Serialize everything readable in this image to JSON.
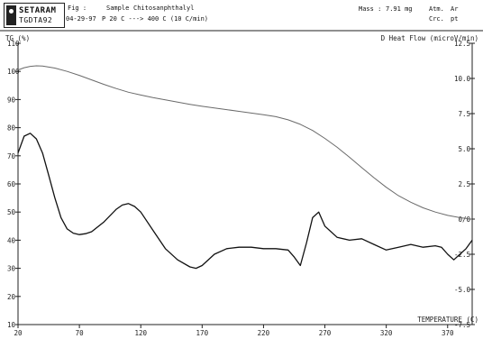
{
  "header": {
    "brand": "SETARAM",
    "model": "TGDTA92",
    "fig_label": "Fig :",
    "sample_label": "Sample",
    "sample_name": "Chitosanphthalyl",
    "date": "04-29-97",
    "program": "P 20 C ---> 400 C (10 C/min)",
    "mass_label": "Mass :",
    "mass_value": "7.91 mg",
    "atm_label": "Atm.",
    "atm_value": "Ar",
    "crucible_label": "Crc.",
    "crucible_value": "pt"
  },
  "chart_data": {
    "type": "line",
    "xlabel": "TEMPERATURE (C)",
    "ylabel_left": "TG (%)",
    "ylabel_right": "D Heat Flow (microV/min)",
    "xlim": [
      20,
      390
    ],
    "ylim_left": [
      10,
      110
    ],
    "ylim_right": [
      -7.5,
      12.5
    ],
    "x_ticks": [
      20,
      70,
      120,
      170,
      220,
      270,
      320,
      370
    ],
    "y_left_ticks": [
      10,
      20,
      30,
      40,
      50,
      60,
      70,
      80,
      90,
      100,
      110
    ],
    "y_right_ticks": [
      {
        "value": 12.5,
        "label": "12.5"
      },
      {
        "value": 10.0,
        "label": "10.0"
      },
      {
        "value": 7.5,
        "label": "7.5"
      },
      {
        "value": 5.0,
        "label": "5.0"
      },
      {
        "value": 2.5,
        "label": "2.5"
      },
      {
        "value": 0.0,
        "label": "0/0"
      },
      {
        "value": -2.5,
        "label": "-2.5"
      },
      {
        "value": -5.0,
        "label": "-5.0"
      },
      {
        "value": -7.5,
        "label": "-7.5"
      }
    ],
    "grid": false,
    "series": [
      {
        "axis": "left",
        "color": "#6a6a6a",
        "x": [
          20,
          25,
          30,
          35,
          40,
          50,
          60,
          70,
          80,
          90,
          100,
          110,
          120,
          130,
          140,
          150,
          160,
          170,
          180,
          190,
          200,
          210,
          220,
          230,
          240,
          250,
          260,
          270,
          280,
          290,
          300,
          310,
          320,
          330,
          340,
          350,
          360,
          370,
          380,
          390
        ],
        "y": [
          100.5,
          101.3,
          101.8,
          102.0,
          101.9,
          101.2,
          100.0,
          98.6,
          97.0,
          95.4,
          93.9,
          92.6,
          91.6,
          90.7,
          89.9,
          89.1,
          88.3,
          87.6,
          87.0,
          86.4,
          85.8,
          85.2,
          84.6,
          83.9,
          82.8,
          81.2,
          79.0,
          76.2,
          73.0,
          69.5,
          65.8,
          62.2,
          58.8,
          55.8,
          53.5,
          51.5,
          50.0,
          48.8,
          48.0,
          47.4
        ]
      },
      {
        "axis": "left",
        "color": "#111111",
        "x": [
          20,
          25,
          30,
          35,
          40,
          45,
          50,
          55,
          60,
          65,
          70,
          75,
          80,
          90,
          100,
          105,
          110,
          115,
          120,
          130,
          140,
          150,
          160,
          165,
          170,
          180,
          190,
          200,
          210,
          220,
          230,
          240,
          245,
          250,
          255,
          260,
          265,
          270,
          280,
          290,
          300,
          310,
          320,
          330,
          340,
          350,
          360,
          365,
          370,
          375,
          380,
          385,
          390
        ],
        "y": [
          71.0,
          77.0,
          78.0,
          76.0,
          71.0,
          63.0,
          55.0,
          48.0,
          44.0,
          42.5,
          42.0,
          42.3,
          43.0,
          46.5,
          51.0,
          52.5,
          53.0,
          52.0,
          50.0,
          43.5,
          37.0,
          33.0,
          30.5,
          30.0,
          31.0,
          35.0,
          37.0,
          37.5,
          37.5,
          37.0,
          37.0,
          36.5,
          34.0,
          31.0,
          39.0,
          48.0,
          50.0,
          45.0,
          41.0,
          40.0,
          40.5,
          38.5,
          36.5,
          37.5,
          38.5,
          37.5,
          38.0,
          37.5,
          35.0,
          33.0,
          35.0,
          37.0,
          40.0
        ]
      }
    ]
  }
}
